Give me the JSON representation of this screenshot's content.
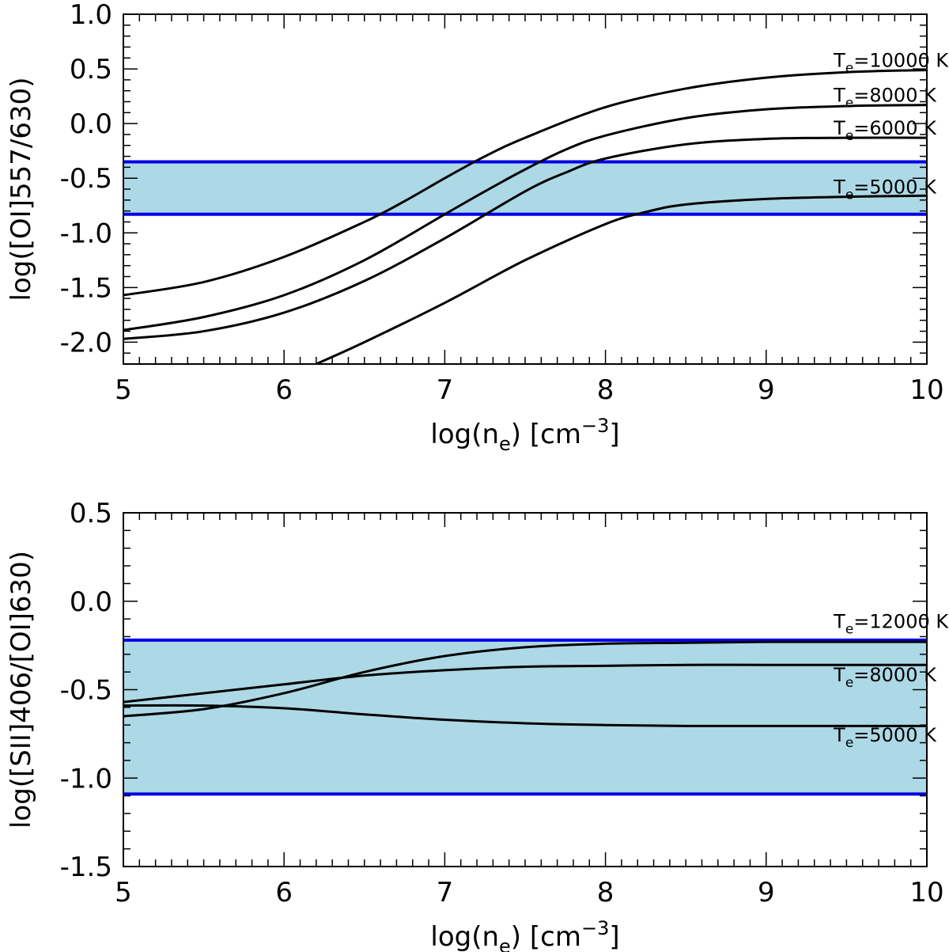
{
  "chart_data": [
    {
      "type": "line",
      "xlabel": "log(n_e) [cm^-3]",
      "ylabel": "log([OI]557/630)",
      "xlim": [
        5,
        10
      ],
      "ylim": [
        -2.2,
        1.0
      ],
      "xticks": [
        "5",
        "6",
        "7",
        "8",
        "9",
        "10"
      ],
      "yticks": [
        "1.0",
        "0.5",
        "0.0",
        "-0.5",
        "-1.0",
        "-1.5",
        "-2.0"
      ],
      "ytick_values": [
        1.0,
        0.5,
        0.0,
        -0.5,
        -1.0,
        -1.5,
        -2.0
      ],
      "band": {
        "lower": -0.83,
        "upper": -0.35,
        "fill": "#add8e6",
        "edge": "#0000e6"
      },
      "series": [
        {
          "name": "T_e=10000 K",
          "label_prefix": "T",
          "label_sub": "e",
          "label_rest": "=10000 K",
          "label_at": [
            9.42,
            0.49
          ],
          "x": [
            5.0,
            5.5,
            6.0,
            6.5,
            6.75,
            7.0,
            7.25,
            7.5,
            8.0,
            8.5,
            9.0,
            9.5,
            10.0
          ],
          "y": [
            -1.57,
            -1.45,
            -1.22,
            -0.9,
            -0.71,
            -0.5,
            -0.3,
            -0.13,
            0.15,
            0.32,
            0.42,
            0.47,
            0.49
          ]
        },
        {
          "name": "T_e=8000 K",
          "label_prefix": "T",
          "label_sub": "e",
          "label_rest": "=8000 K",
          "label_at": [
            9.42,
            0.17
          ],
          "x": [
            5.0,
            5.5,
            6.0,
            6.5,
            7.0,
            7.25,
            7.5,
            7.75,
            8.0,
            8.5,
            9.0,
            9.5,
            10.0
          ],
          "y": [
            -1.89,
            -1.77,
            -1.57,
            -1.25,
            -0.83,
            -0.62,
            -0.42,
            -0.24,
            -0.11,
            0.05,
            0.13,
            0.16,
            0.17
          ]
        },
        {
          "name": "T_e=6000 K",
          "label_prefix": "T",
          "label_sub": "e",
          "label_rest": "=6000 K",
          "label_at": [
            9.42,
            -0.13
          ],
          "x": [
            5.0,
            5.5,
            6.0,
            6.5,
            7.0,
            7.5,
            7.75,
            8.0,
            8.5,
            9.0,
            9.5,
            10.0
          ],
          "y": [
            -1.97,
            -1.9,
            -1.73,
            -1.44,
            -1.05,
            -0.62,
            -0.45,
            -0.32,
            -0.19,
            -0.14,
            -0.13,
            -0.13
          ]
        },
        {
          "name": "T_e=5000 K",
          "label_prefix": "T",
          "label_sub": "e",
          "label_rest": "=5000 K",
          "label_at": [
            9.42,
            -0.67
          ],
          "x": [
            6.2,
            6.5,
            7.0,
            7.5,
            8.0,
            8.25,
            8.5,
            9.0,
            9.5,
            10.0
          ],
          "y": [
            -2.2,
            -2.0,
            -1.64,
            -1.25,
            -0.92,
            -0.81,
            -0.74,
            -0.69,
            -0.67,
            -0.66
          ]
        }
      ]
    },
    {
      "type": "line",
      "xlabel": "log(n_e) [cm^-3]",
      "ylabel": "log([SII]406/[OI]630)",
      "xlim": [
        5,
        10
      ],
      "ylim": [
        -1.5,
        0.5
      ],
      "xticks": [
        "5",
        "6",
        "7",
        "8",
        "9",
        "10"
      ],
      "yticks": [
        "0.5",
        "0.0",
        "-0.5",
        "-1.0",
        "-1.5"
      ],
      "ytick_values": [
        0.5,
        0.0,
        -0.5,
        -1.0,
        -1.5
      ],
      "band": {
        "lower": -1.09,
        "upper": -0.22,
        "fill": "#add8e6",
        "edge": "#0000e6"
      },
      "series": [
        {
          "name": "T_e=12000 K",
          "label_prefix": "T",
          "label_sub": "e",
          "label_rest": "=12000 K",
          "label_at": [
            9.42,
            -0.17
          ],
          "x": [
            5.0,
            5.5,
            6.0,
            6.5,
            7.0,
            7.5,
            8.0,
            8.5,
            9.0,
            9.5,
            10.0
          ],
          "y": [
            -0.65,
            -0.61,
            -0.52,
            -0.4,
            -0.31,
            -0.26,
            -0.24,
            -0.235,
            -0.23,
            -0.23,
            -0.23
          ]
        },
        {
          "name": "T_e=8000 K",
          "label_prefix": "T",
          "label_sub": "e",
          "label_rest": "=8000 K",
          "label_at": [
            9.42,
            -0.47
          ],
          "x": [
            5.0,
            5.5,
            6.0,
            6.5,
            7.0,
            7.5,
            8.0,
            8.5,
            9.0,
            9.5,
            10.0
          ],
          "y": [
            -0.57,
            -0.52,
            -0.47,
            -0.42,
            -0.39,
            -0.37,
            -0.365,
            -0.36,
            -0.36,
            -0.36,
            -0.36
          ]
        },
        {
          "name": "T_e=5000 K",
          "label_prefix": "T",
          "label_sub": "e",
          "label_rest": "=5000 K",
          "label_at": [
            9.42,
            -0.81
          ],
          "x": [
            5.0,
            5.5,
            6.0,
            6.5,
            7.0,
            7.5,
            8.0,
            8.5,
            9.0,
            9.5,
            10.0
          ],
          "y": [
            -0.59,
            -0.59,
            -0.605,
            -0.64,
            -0.67,
            -0.69,
            -0.7,
            -0.705,
            -0.705,
            -0.705,
            -0.705
          ]
        }
      ]
    }
  ]
}
